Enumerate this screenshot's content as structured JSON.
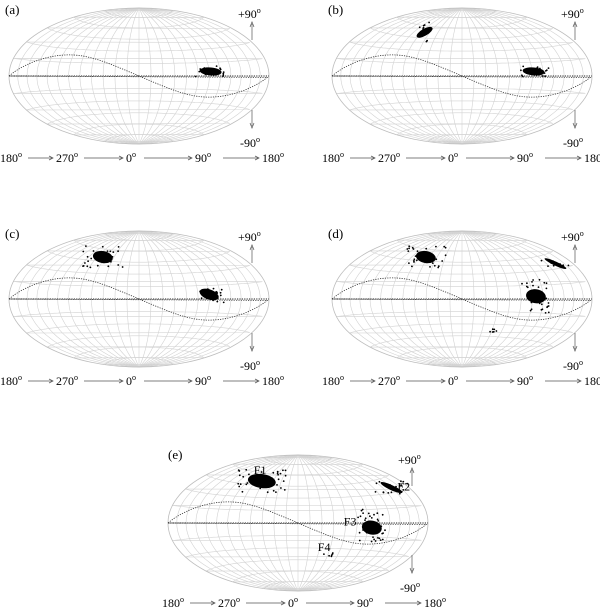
{
  "panels": [
    {
      "id": "a",
      "label": "(a)",
      "top_lat": "+90",
      "bottom_lat": "-90",
      "lon_labels": [
        "180",
        "270",
        "0",
        "90",
        "180"
      ],
      "clusters": [
        {
          "lon": 92,
          "lat": 5,
          "name": ""
        }
      ]
    },
    {
      "id": "b",
      "label": "(b)",
      "top_lat": "+90",
      "bottom_lat": "-90",
      "lon_labels": [
        "180",
        "270",
        "0",
        "90",
        "180"
      ],
      "clusters": [
        {
          "lon": 290,
          "lat": 52,
          "name": ""
        },
        {
          "lon": 92,
          "lat": 5,
          "name": ""
        }
      ]
    },
    {
      "id": "c",
      "label": "(c)",
      "top_lat": "+90",
      "bottom_lat": "-90",
      "lon_labels": [
        "180",
        "270",
        "0",
        "90",
        "180"
      ],
      "clusters": [
        {
          "lon": 295,
          "lat": 50,
          "name": ""
        },
        {
          "lon": 90,
          "lat": 5,
          "name": ""
        }
      ]
    },
    {
      "id": "d",
      "label": "(d)",
      "top_lat": "+90",
      "bottom_lat": "-90",
      "lon_labels": [
        "180",
        "270",
        "0",
        "90",
        "180"
      ],
      "clusters": [
        {
          "lon": 295,
          "lat": 50,
          "name": ""
        },
        {
          "lon": 150,
          "lat": 35,
          "name": ""
        },
        {
          "lon": 95,
          "lat": 3,
          "name": ""
        },
        {
          "lon": 45,
          "lat": -38,
          "name": ""
        }
      ]
    },
    {
      "id": "e",
      "label": "(e)",
      "top_lat": "+90",
      "bottom_lat": "-90",
      "lon_labels": [
        "180",
        "270",
        "0",
        "90",
        "180"
      ],
      "clusters": [
        {
          "lon": 295,
          "lat": 50,
          "name": "F1"
        },
        {
          "lon": 150,
          "lat": 35,
          "name": "F2"
        },
        {
          "lon": 95,
          "lat": -5,
          "name": "F3"
        },
        {
          "lon": 45,
          "lat": -38,
          "name": "F4"
        }
      ]
    }
  ],
  "degree_symbol": "o"
}
